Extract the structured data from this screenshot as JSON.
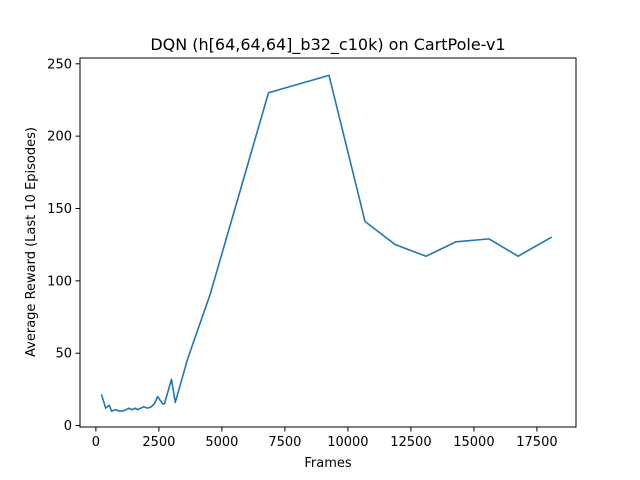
{
  "chart_data": {
    "type": "line",
    "title": "DQN (h[64,64,64]_b32_c10k) on CartPole-v1",
    "xlabel": "Frames",
    "ylabel": "Average Reward (Last 10 Episodes)",
    "xlim": [
      -630,
      19050
    ],
    "ylim": [
      -1,
      254
    ],
    "xticks": [
      0,
      2500,
      5000,
      7500,
      10000,
      12500,
      15000,
      17500
    ],
    "xtick_labels": [
      "0",
      "2500",
      "5000",
      "7500",
      "10000",
      "12500",
      "15000",
      "17500"
    ],
    "yticks": [
      0,
      50,
      100,
      150,
      200,
      250
    ],
    "ytick_labels": [
      "0",
      "50",
      "100",
      "150",
      "200",
      "250"
    ],
    "grid": false,
    "line_color": "#1f77b4",
    "series": [
      {
        "x": [
          230,
          390,
          530,
          620,
          780,
          920,
          1060,
          1200,
          1300,
          1420,
          1560,
          1650,
          1780,
          1900,
          2050,
          2200,
          2320,
          2450,
          2650,
          2720,
          3000,
          3150,
          3640,
          4540,
          6850,
          9250,
          10680,
          11880,
          13100,
          14290,
          15600,
          16750,
          18060
        ],
        "y": [
          21,
          12,
          14,
          10,
          11,
          10,
          10,
          11,
          12,
          11,
          12,
          11,
          12,
          13,
          12,
          13,
          15,
          20,
          15,
          15,
          32,
          16,
          46,
          91,
          230,
          242,
          141,
          125,
          117,
          127,
          129,
          117,
          130
        ]
      }
    ]
  }
}
